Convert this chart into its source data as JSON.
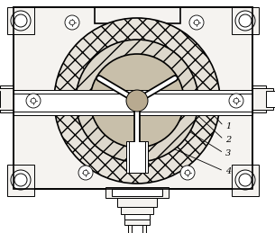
{
  "bg_color": "#ffffff",
  "line_color": "#000000",
  "figsize": [
    3.05,
    2.59
  ],
  "dpi": 100,
  "labels": [
    "1",
    "2",
    "3",
    "4"
  ],
  "hatch_outer": "xx",
  "hatch_inner": "//",
  "fill_housing": "#f5f3f0",
  "fill_outer_circ": "#e8e4dc",
  "fill_inner_circ": "#ddd8cc",
  "fill_ferrite": "#ccc4b0",
  "fill_port": "#e0dcd4"
}
